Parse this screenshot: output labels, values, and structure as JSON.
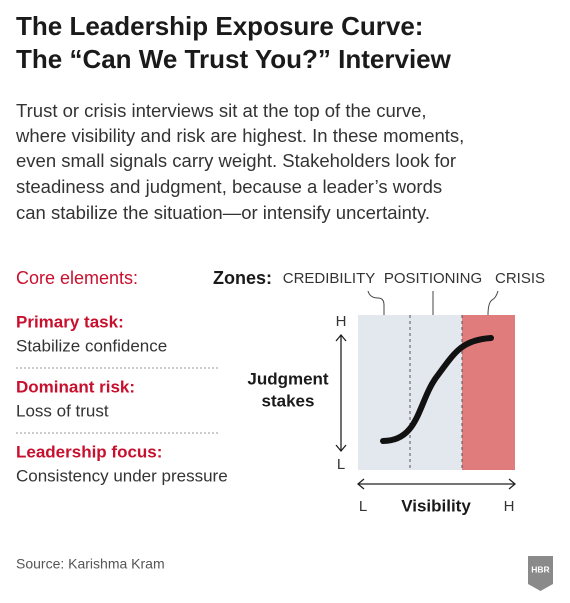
{
  "header": {
    "title_lines": [
      "The Leadership Exposure Curve:",
      "The “Can We Trust You?” Interview"
    ]
  },
  "intro": {
    "lines": [
      "Trust or crisis interviews sit at the top of the curve,",
      "where visibility and risk are highest. In these moments,",
      "even small signals carry weight. Stakeholders look for",
      "steadiness and judgment, because a leader’s words",
      "can stabilize the situation—or intensify uncertainty."
    ]
  },
  "core": {
    "heading": "Core elements:",
    "items": [
      {
        "label": "Primary task:",
        "text": "Stabilize confidence"
      },
      {
        "label": "Dominant risk:",
        "text": "Loss of trust"
      },
      {
        "label": "Leadership focus:",
        "text": "Consistency under pressure"
      }
    ]
  },
  "diagram": {
    "zones_label": "Zones:",
    "zones": [
      "CREDIBILITY",
      "POSITIONING",
      "CRISIS"
    ],
    "y_axis": {
      "label_lines": [
        "Judgment",
        "stakes"
      ],
      "high": "H",
      "low": "L"
    },
    "x_axis": {
      "label": "Visibility",
      "low": "L",
      "high": "H"
    }
  },
  "footer": {
    "source": "Source: Karishma Kram",
    "logo": "HBR"
  }
}
